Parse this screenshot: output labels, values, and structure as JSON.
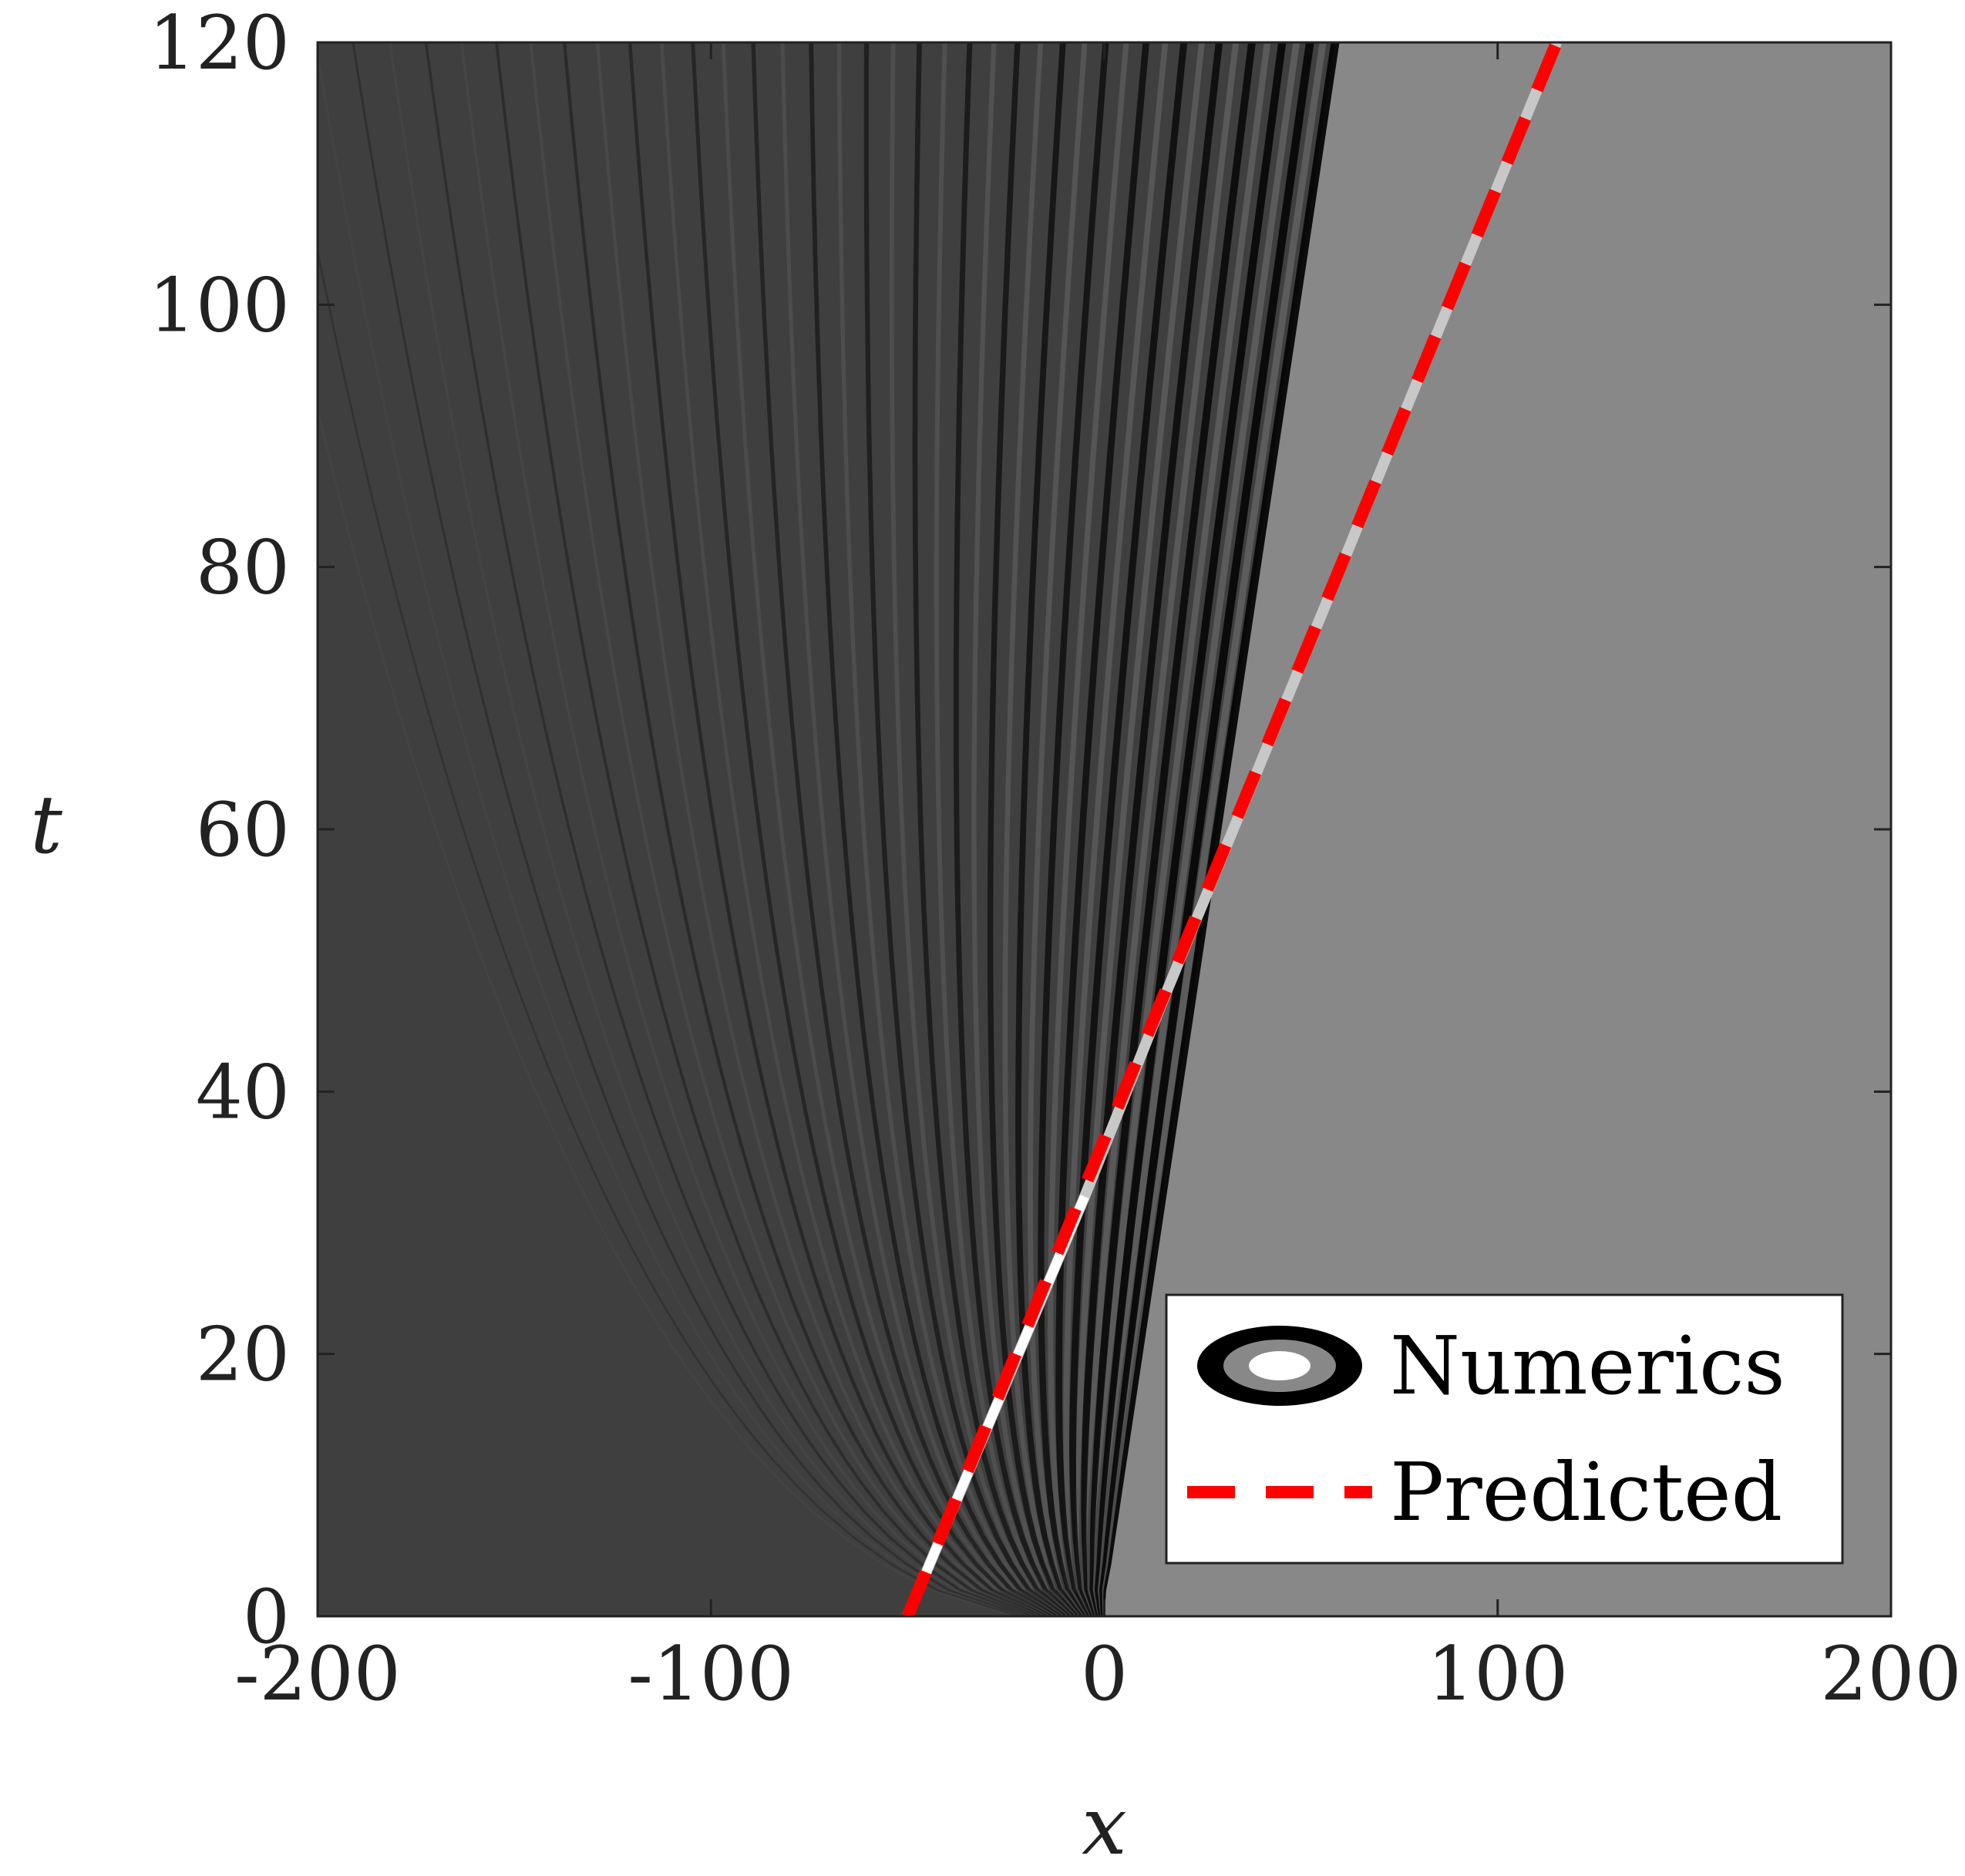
{
  "chart_data": {
    "type": "heatmap",
    "title": "",
    "xlabel": "x",
    "ylabel": "t",
    "xlim": [
      -200,
      200
    ],
    "ylim": [
      0,
      120
    ],
    "x_ticks": [
      "-200",
      "-100",
      "0",
      "100",
      "200"
    ],
    "y_ticks": [
      "0",
      "20",
      "40",
      "60",
      "80",
      "100",
      "120"
    ],
    "x_tick_values": [
      -200,
      -100,
      0,
      100,
      200
    ],
    "y_tick_values": [
      0,
      20,
      40,
      60,
      80,
      100,
      120
    ],
    "colormap": "grayscale",
    "legend_placement": "bottom-right",
    "legend": [
      {
        "name": "Numerics",
        "style": "grayscale-contour"
      },
      {
        "name": "Predicted",
        "style": "dashed",
        "color": "#ff0000"
      }
    ],
    "predicted_line": {
      "x": [
        -50,
        115
      ],
      "t": [
        0,
        120
      ],
      "color": "#ff0000"
    },
    "soliton_tracks": [
      {
        "x": [
          -50,
          -5,
          15,
          115
        ],
        "t": [
          0,
          32,
          47,
          120
        ],
        "colors": [
          "#ffffff",
          "#c8c8c8"
        ]
      }
    ],
    "background_levels": {
      "left": "#3f3f3f",
      "right": "#888888"
    }
  }
}
